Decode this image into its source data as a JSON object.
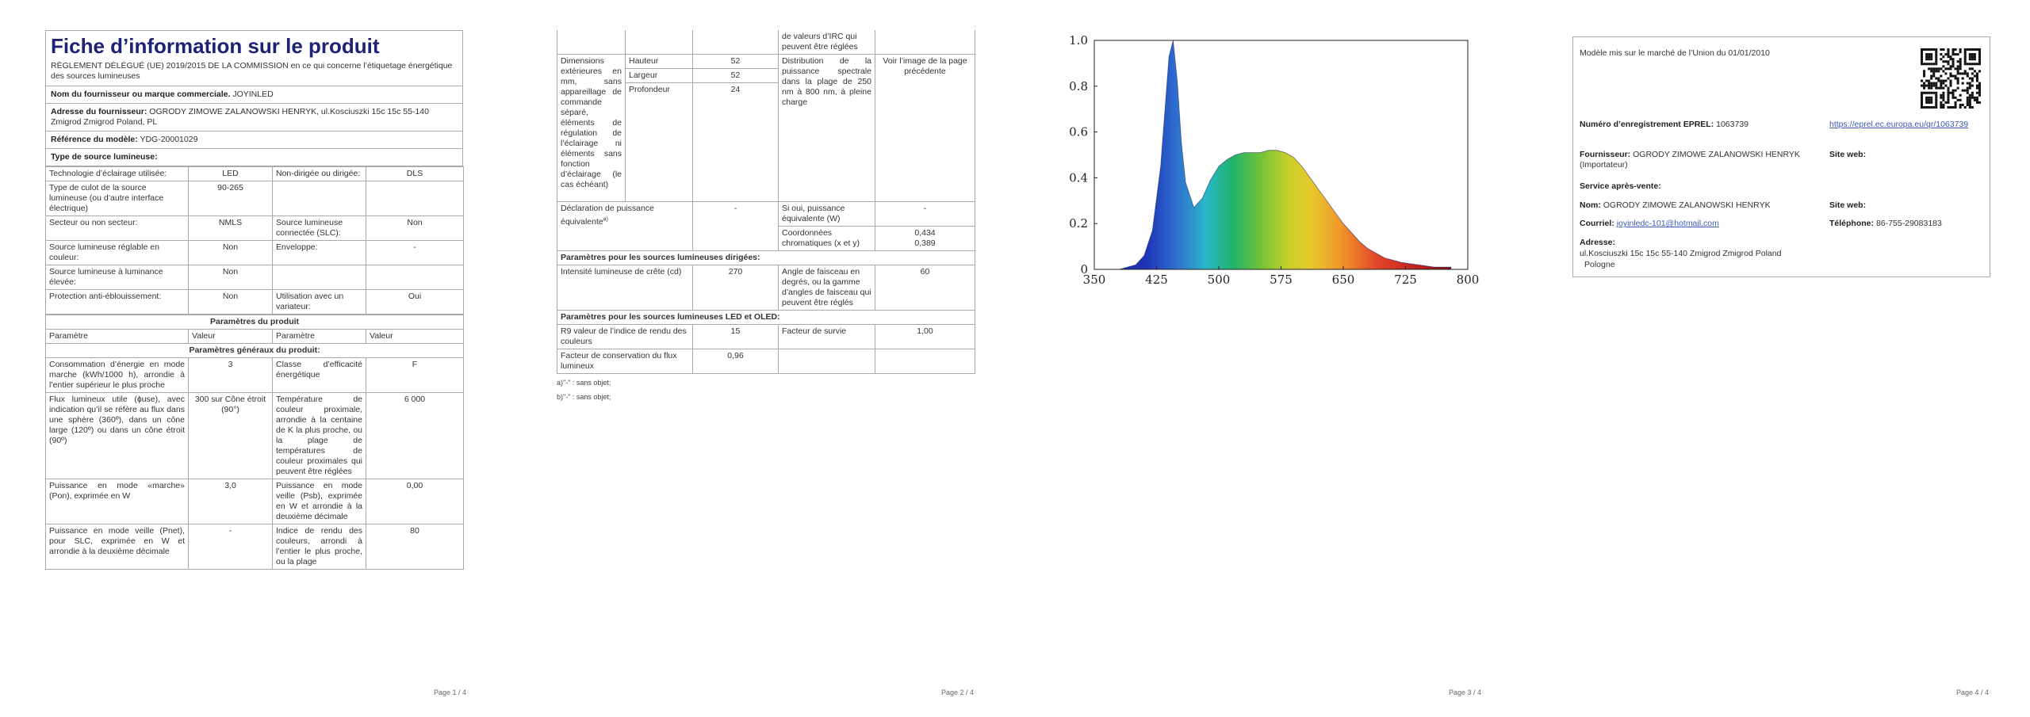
{
  "page1": {
    "title": "Fiche d’information sur le produit",
    "regulation": "RÈGLEMENT DÉLÉGUÉ (UE) 2019/2015 DE LA COMMISSION en ce qui concerne l’étiquetage énergétique des sources lumineuses",
    "supplier_name_label": "Nom du fournisseur ou marque commerciale.",
    "supplier_name": "JOYINLED",
    "supplier_address_label": "Adresse du fournisseur:",
    "supplier_address": "OGRODY ZIMOWE ZALANOWSKI HENRYK, ul.Kosciuszki 15c 15c 55-140 Zmigrod Zmigrod Poland, PL",
    "model_ref_label": "Référence du modèle:",
    "model_ref": "YDG-20001029",
    "source_type_label": "Type de source lumineuse:",
    "rows_a": [
      [
        "Technologie d’éclairage utilisée:",
        "LED",
        "Non-dirigée ou dirigée:",
        "DLS"
      ],
      [
        "Type de culot de la source lumineuse (ou d’autre interface électrique)",
        "90-265",
        "",
        ""
      ],
      [
        "Secteur ou non secteur:",
        "NMLS",
        "Source lumineuse connectée (SLC):",
        "Non"
      ],
      [
        "Source lumineuse réglable en couleur:",
        "Non",
        "Enveloppe:",
        "-"
      ],
      [
        "Source lumineuse à luminance élevée:",
        "Non",
        "",
        ""
      ],
      [
        "Protection anti-éblouissement:",
        "Non",
        "Utilisation avec un variateur:",
        "Oui"
      ]
    ],
    "params_title": "Paramètres du produit",
    "col_headers": [
      "Paramètre",
      "Valeur",
      "Paramètre",
      "Valeur"
    ],
    "general_title": "Paramètres généraux du produit:",
    "rows_b": [
      [
        "Consommation d’énergie en mode marche (kWh/1000 h), arrondie à l’entier supérieur le plus proche",
        "3",
        "Classe d’efficacité énergétique",
        "F"
      ],
      [
        "Flux lumineux utile (ɸuse), avec indication qu’il se réfère au flux dans une sphère (360º), dans un cône large (120º) ou dans un cône étroit (90º)",
        "300 sur Cône étroit (90°)",
        "Température de couleur proximale, arrondie à la centaine de K la plus proche, ou la plage de températures de couleur proximales qui peuvent être réglées",
        "6 000"
      ],
      [
        "Puissance en mode «marche» (Pon), exprimée en W",
        "3,0",
        "Puissance en mode veille (Psb), exprimée en W et arrondie à la deuxième décimale",
        "0,00"
      ],
      [
        "Puissance en mode veille (Pnet), pour SLC, exprimée en W et arrondie à la deuxième décimale",
        "-",
        "Indice de rendu des couleurs, arrondi à l’entier le plus proche, ou la plage",
        "80"
      ]
    ],
    "page_no": "Page 1 / 4"
  },
  "page2": {
    "top_cont": "de valeurs d’IRC qui peuvent être réglées",
    "dims_label": "Dimensions extérieures en mm, sans appareillage de commande séparé, éléments de régulation de l’éclairage ni éléments sans fonction d’éclairage (le cas échéant)",
    "dims": [
      [
        "Hauteur",
        "52"
      ],
      [
        "Largeur",
        "52"
      ],
      [
        "Profondeur",
        "24"
      ]
    ],
    "spd_label": "Distribution de la puissance spectrale dans la plage de 250 nm à 800 nm, à pleine charge",
    "spd_value": "Voir l’image de la page précédente",
    "equiv_label": "Déclaration de puissance équivalentea)",
    "equiv_value": "-",
    "equiv_q": "Si oui, puissance équivalente (W)",
    "equiv_q_value": "-",
    "chroma_label": "Coordonnées chromatiques (x et y)",
    "chroma_x": "0,434",
    "chroma_y": "0,389",
    "directed_title": "Paramètres pour les sources lumineuses dirigées:",
    "peak_label": "Intensité lumineuse de crête (cd)",
    "peak_value": "270",
    "beam_label": "Angle de faisceau en degrés, ou la gamme d’angles de faisceau qui peuvent être réglés",
    "beam_value": "60",
    "led_title": "Paramètres pour les sources lumineuses LED et OLED:",
    "r9_label": "R9 valeur de l’indice de rendu des couleurs",
    "r9_value": "15",
    "survival_label": "Facteur de survie",
    "survival_value": "1,00",
    "maint_label": "Facteur de conservation du flux lumineux",
    "maint_value": "0,96",
    "note_a": "a)\"-\" : sans objet;",
    "note_b": "b)\"-\" : sans objet;",
    "page_no": "Page 2 / 4"
  },
  "page3": {
    "chart_data": {
      "type": "area",
      "title": "",
      "xlabel": "",
      "ylabel": "",
      "xlim": [
        350,
        800
      ],
      "ylim": [
        0,
        1.0
      ],
      "x_ticks": [
        "350",
        "425",
        "500",
        "575",
        "650",
        "725",
        "800"
      ],
      "y_ticks": [
        "0",
        "0.2",
        "0.4",
        "0.6",
        "0.8",
        "1.0"
      ],
      "x": [
        380,
        390,
        400,
        410,
        420,
        430,
        440,
        445,
        450,
        455,
        460,
        470,
        480,
        490,
        500,
        510,
        520,
        530,
        540,
        550,
        560,
        570,
        580,
        590,
        600,
        610,
        620,
        630,
        640,
        650,
        660,
        670,
        680,
        690,
        700,
        710,
        720,
        730,
        740,
        750,
        760,
        770,
        780
      ],
      "y": [
        0.0,
        0.01,
        0.02,
        0.06,
        0.17,
        0.45,
        0.93,
        1.0,
        0.82,
        0.55,
        0.38,
        0.27,
        0.31,
        0.39,
        0.45,
        0.48,
        0.5,
        0.51,
        0.51,
        0.51,
        0.52,
        0.52,
        0.51,
        0.49,
        0.45,
        0.4,
        0.35,
        0.3,
        0.25,
        0.2,
        0.16,
        0.12,
        0.09,
        0.07,
        0.05,
        0.04,
        0.03,
        0.025,
        0.02,
        0.015,
        0.01,
        0.01,
        0.01
      ]
    },
    "page_no": "Page 3 / 4"
  },
  "page4": {
    "market_date": "Modèle mis sur le marché de l’Union du 01/01/2010",
    "eprel_label": "Numéro d’enregistrement EPREL:",
    "eprel_number": "1063739",
    "eprel_link": "https://eprel.ec.europa.eu/qr/1063739",
    "supplier_label": "Fournisseur:",
    "supplier_value": "OGRODY ZIMOWE ZALANOWSKI HENRYK (Importateur)",
    "website_label": "Site web:",
    "service_title": "Service après-vente:",
    "name_label": "Nom:",
    "name_value": "OGRODY ZIMOWE ZALANOWSKI HENRYK",
    "website_label2": "Site web:",
    "email_label": "Courriel:",
    "email_value": "joyinledc-101@hotmail.com",
    "phone_label": "Téléphone:",
    "phone_value": "86-755-29083183",
    "address_label": "Adresse:",
    "address_line1": "ul.Kosciuszki 15c 15c 55-140 Zmigrod Zmigrod Poland",
    "address_line2": "Pologne",
    "page_no": "Page 4 / 4"
  }
}
